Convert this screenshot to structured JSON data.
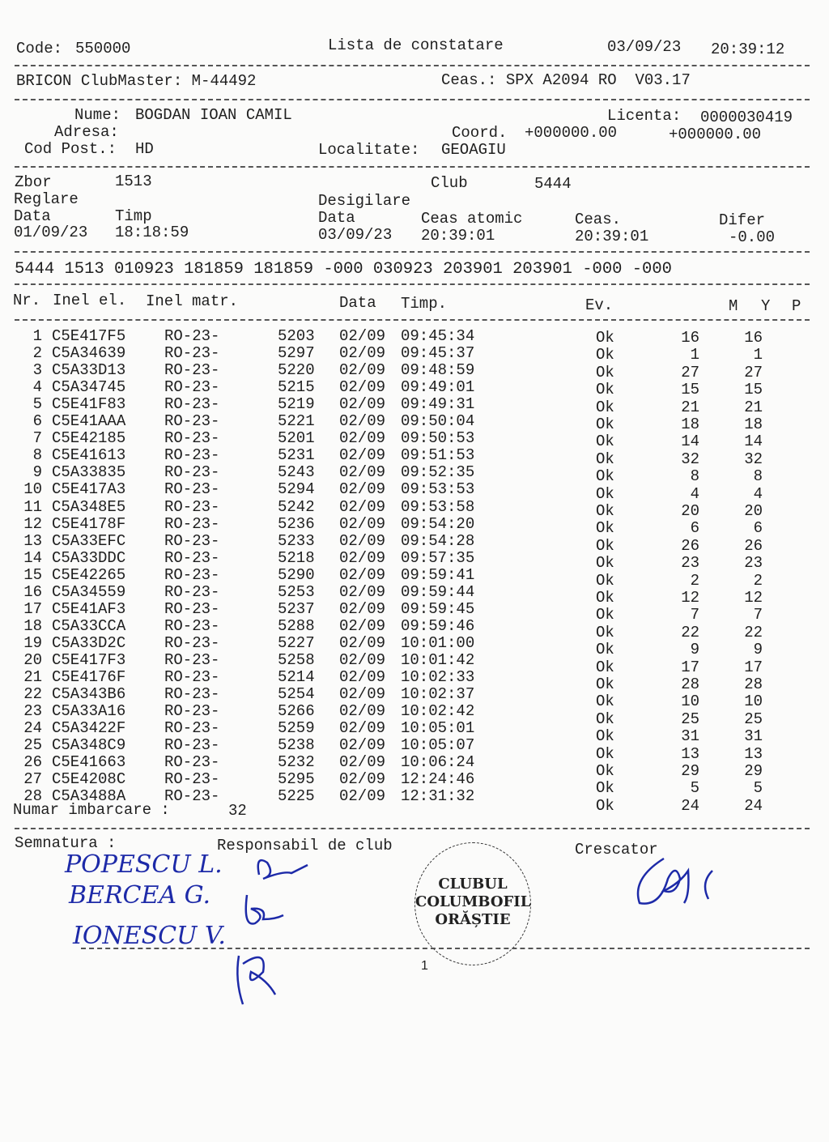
{
  "header": {
    "code_label": "Code:",
    "code": "550000",
    "title": "Lista de constatare",
    "date": "03/09/23",
    "time": "20:39:12"
  },
  "device": {
    "clubmaster": "BRICON ClubMaster: M-44492",
    "clock": "Ceas.: SPX A2094 RO  V03.17"
  },
  "owner": {
    "name_label": "Nume:",
    "name": "BOGDAN IOAN CAMIL",
    "licence_label": "Licenta:",
    "licence": "0000030419",
    "address_label": "Adresa:",
    "coord_label": "Coord.",
    "coord1": "+000000.00",
    "coord2": "+000000.00",
    "postal_label": "Cod Post.:",
    "postal": "HD",
    "locality_label": "Localitate:",
    "locality": "GEOAGIU"
  },
  "flight": {
    "zbor_label": "Zbor",
    "zbor": "1513",
    "club_label": "Club",
    "club": "5444",
    "reglare_label": "Reglare",
    "desigilare_label": "Desigilare",
    "data_label": "Data",
    "timp_label": "Timp",
    "ceas_atomic_label": "Ceas atomic",
    "ceas_label": "Ceas.",
    "difer_label": "Difer",
    "reg_date": "01/09/23",
    "reg_time": "18:18:59",
    "des_date": "03/09/23",
    "des_atomic": "20:39:01",
    "des_clock": "20:39:01",
    "difer": "-0.00"
  },
  "code_line": "5444 1513 010923 181859 181859 -000 030923 203901 203901 -000 -000",
  "columns": {
    "nr": "Nr.",
    "inel_el": "Inel el.",
    "inel_matr": "Inel matr.",
    "data": "Data",
    "timp": "Timp.",
    "ev": "Ev.",
    "m": "M",
    "y": "Y",
    "p": "P"
  },
  "rows": [
    [
      "1",
      "C5E417F5",
      "RO-23-",
      "5203",
      "02/09",
      "09:45:34",
      "Ok",
      "16",
      "16"
    ],
    [
      "2",
      "C5A34639",
      "RO-23-",
      "5297",
      "02/09",
      "09:45:37",
      "Ok",
      "1",
      "1"
    ],
    [
      "3",
      "C5A33D13",
      "RO-23-",
      "5220",
      "02/09",
      "09:48:59",
      "Ok",
      "27",
      "27"
    ],
    [
      "4",
      "C5A34745",
      "RO-23-",
      "5215",
      "02/09",
      "09:49:01",
      "Ok",
      "15",
      "15"
    ],
    [
      "5",
      "C5E41F83",
      "RO-23-",
      "5219",
      "02/09",
      "09:49:31",
      "Ok",
      "21",
      "21"
    ],
    [
      "6",
      "C5E41AAA",
      "RO-23-",
      "5221",
      "02/09",
      "09:50:04",
      "Ok",
      "18",
      "18"
    ],
    [
      "7",
      "C5E42185",
      "RO-23-",
      "5201",
      "02/09",
      "09:50:53",
      "Ok",
      "14",
      "14"
    ],
    [
      "8",
      "C5E41613",
      "RO-23-",
      "5231",
      "02/09",
      "09:51:53",
      "Ok",
      "32",
      "32"
    ],
    [
      "9",
      "C5A33835",
      "RO-23-",
      "5243",
      "02/09",
      "09:52:35",
      "Ok",
      "8",
      "8"
    ],
    [
      "10",
      "C5E417A3",
      "RO-23-",
      "5294",
      "02/09",
      "09:53:53",
      "Ok",
      "4",
      "4"
    ],
    [
      "11",
      "C5A348E5",
      "RO-23-",
      "5242",
      "02/09",
      "09:53:58",
      "Ok",
      "20",
      "20"
    ],
    [
      "12",
      "C5E4178F",
      "RO-23-",
      "5236",
      "02/09",
      "09:54:20",
      "Ok",
      "6",
      "6"
    ],
    [
      "13",
      "C5A33EFC",
      "RO-23-",
      "5233",
      "02/09",
      "09:54:28",
      "Ok",
      "26",
      "26"
    ],
    [
      "14",
      "C5A33DDC",
      "RO-23-",
      "5218",
      "02/09",
      "09:57:35",
      "Ok",
      "23",
      "23"
    ],
    [
      "15",
      "C5E42265",
      "RO-23-",
      "5290",
      "02/09",
      "09:59:41",
      "Ok",
      "2",
      "2"
    ],
    [
      "16",
      "C5A34559",
      "RO-23-",
      "5253",
      "02/09",
      "09:59:44",
      "Ok",
      "12",
      "12"
    ],
    [
      "17",
      "C5E41AF3",
      "RO-23-",
      "5237",
      "02/09",
      "09:59:45",
      "Ok",
      "7",
      "7"
    ],
    [
      "18",
      "C5A33CCA",
      "RO-23-",
      "5288",
      "02/09",
      "09:59:46",
      "Ok",
      "22",
      "22"
    ],
    [
      "19",
      "C5A33D2C",
      "RO-23-",
      "5227",
      "02/09",
      "10:01:00",
      "Ok",
      "9",
      "9"
    ],
    [
      "20",
      "C5E417F3",
      "RO-23-",
      "5258",
      "02/09",
      "10:01:42",
      "Ok",
      "17",
      "17"
    ],
    [
      "21",
      "C5E4176F",
      "RO-23-",
      "5214",
      "02/09",
      "10:02:33",
      "Ok",
      "28",
      "28"
    ],
    [
      "22",
      "C5A343B6",
      "RO-23-",
      "5254",
      "02/09",
      "10:02:37",
      "Ok",
      "10",
      "10"
    ],
    [
      "23",
      "C5A33A16",
      "RO-23-",
      "5266",
      "02/09",
      "10:02:42",
      "Ok",
      "25",
      "25"
    ],
    [
      "24",
      "C5A3422F",
      "RO-23-",
      "5259",
      "02/09",
      "10:05:01",
      "Ok",
      "31",
      "31"
    ],
    [
      "25",
      "C5A348C9",
      "RO-23-",
      "5238",
      "02/09",
      "10:05:07",
      "Ok",
      "13",
      "13"
    ],
    [
      "26",
      "C5E41663",
      "RO-23-",
      "5232",
      "02/09",
      "10:06:24",
      "Ok",
      "29",
      "29"
    ],
    [
      "27",
      "C5E4208C",
      "RO-23-",
      "5295",
      "02/09",
      "12:24:46",
      "Ok",
      "5",
      "5"
    ],
    [
      "28",
      "C5A3488A",
      "RO-23-",
      "5225",
      "02/09",
      "12:31:32",
      "Ok",
      "24",
      "24"
    ]
  ],
  "footer": {
    "imbarcare_label": "Numar imbarcare :",
    "imbarcare": "32",
    "semnatura_label": "Semnatura :",
    "responsabil_label": "Responsabil de club",
    "crescator_label": "Crescator",
    "page": "1"
  },
  "signatures": {
    "s1": "POPESCU L.",
    "s2": "BERCEA G.",
    "s3": "IONESCU V."
  },
  "stamp": {
    "line1": "CLUBUL",
    "line2": "COLUMBOFIL",
    "line3": "ORĂȘTIE"
  }
}
